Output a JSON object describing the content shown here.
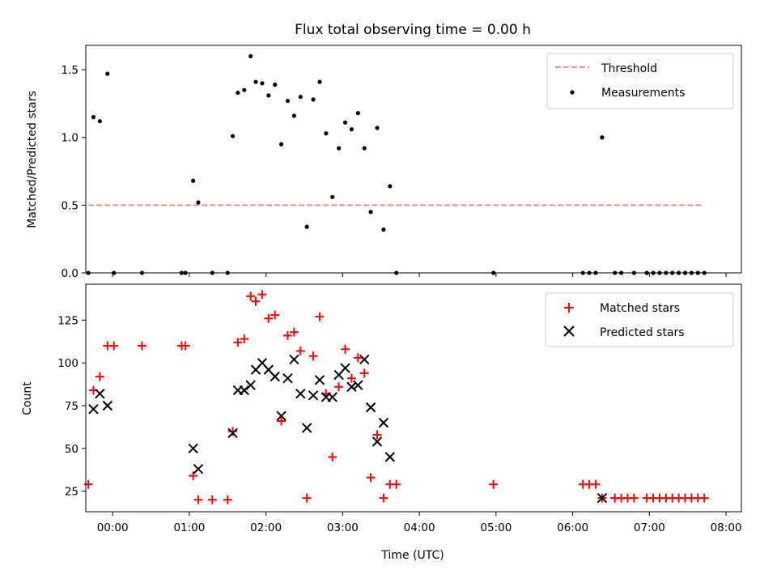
{
  "chart_data": [
    {
      "type": "scatter",
      "title": "Flux total observing time = 0.00 h",
      "xlabel": "",
      "ylabel": "Matched/Predicted stars",
      "xlim": [
        "-00:21",
        "08:12"
      ],
      "ylim": [
        0,
        1.68
      ],
      "yticks": [
        0.0,
        0.5,
        1.0,
        1.5
      ],
      "ytick_labels": [
        "0.0",
        "0.5",
        "1.0",
        "1.5"
      ],
      "legend": {
        "placement": "top-right",
        "entries": [
          "Threshold",
          "Measurements"
        ]
      },
      "series": [
        {
          "name": "Threshold",
          "style": "dashed-line",
          "color": "#ff7f7f",
          "points": [
            [
              "-00:19",
              0.5
            ],
            [
              "07:41",
              0.5
            ]
          ]
        },
        {
          "name": "Measurements",
          "style": "dot",
          "color": "#000000",
          "points": [
            [
              "-00:19",
              0.0
            ],
            [
              "-00:15",
              1.15
            ],
            [
              "-00:10",
              1.12
            ],
            [
              "-00:04",
              1.47
            ],
            [
              "00:01",
              0.0
            ],
            [
              "00:23",
              0.0
            ],
            [
              "00:54",
              0.0
            ],
            [
              "00:57",
              0.0
            ],
            [
              "01:03",
              0.68
            ],
            [
              "01:07",
              0.52
            ],
            [
              "01:18",
              0.0
            ],
            [
              "01:30",
              0.0
            ],
            [
              "01:34",
              1.01
            ],
            [
              "01:38",
              1.33
            ],
            [
              "01:43",
              1.35
            ],
            [
              "01:48",
              1.6
            ],
            [
              "01:52",
              1.41
            ],
            [
              "01:57",
              1.4
            ],
            [
              "02:02",
              1.31
            ],
            [
              "02:07",
              1.39
            ],
            [
              "02:12",
              0.95
            ],
            [
              "02:17",
              1.27
            ],
            [
              "02:22",
              1.16
            ],
            [
              "02:27",
              1.3
            ],
            [
              "02:32",
              0.34
            ],
            [
              "02:37",
              1.28
            ],
            [
              "02:42",
              1.41
            ],
            [
              "02:47",
              1.03
            ],
            [
              "02:52",
              0.56
            ],
            [
              "02:57",
              0.92
            ],
            [
              "03:02",
              1.11
            ],
            [
              "03:07",
              1.06
            ],
            [
              "03:12",
              1.18
            ],
            [
              "03:17",
              0.92
            ],
            [
              "03:22",
              0.45
            ],
            [
              "03:27",
              1.07
            ],
            [
              "03:32",
              0.32
            ],
            [
              "03:37",
              0.64
            ],
            [
              "03:42",
              0.0
            ],
            [
              "04:58",
              0.0
            ],
            [
              "06:08",
              0.0
            ],
            [
              "06:13",
              0.0
            ],
            [
              "06:18",
              0.0
            ],
            [
              "06:23",
              1.0
            ],
            [
              "06:33",
              0.0
            ],
            [
              "06:38",
              0.0
            ],
            [
              "06:48",
              0.0
            ],
            [
              "06:58",
              0.0
            ],
            [
              "07:03",
              0.0
            ],
            [
              "07:08",
              0.0
            ],
            [
              "07:13",
              0.0
            ],
            [
              "07:18",
              0.0
            ],
            [
              "07:23",
              0.0
            ],
            [
              "07:28",
              0.0
            ],
            [
              "07:33",
              0.0
            ],
            [
              "07:38",
              0.0
            ],
            [
              "07:43",
              0.0
            ]
          ]
        }
      ]
    },
    {
      "type": "scatter",
      "title": "",
      "xlabel": "Time (UTC)",
      "ylabel": "Count",
      "xlim": [
        "-00:21",
        "08:12"
      ],
      "ylim": [
        13,
        146
      ],
      "yticks": [
        25,
        50,
        75,
        100,
        125
      ],
      "ytick_labels": [
        "25",
        "50",
        "75",
        "100",
        "125"
      ],
      "xticks": [
        "00:00",
        "01:00",
        "02:00",
        "03:00",
        "04:00",
        "05:00",
        "06:00",
        "07:00",
        "08:00"
      ],
      "legend": {
        "placement": "top-right",
        "entries": [
          "Matched stars",
          "Predicted stars"
        ]
      },
      "series": [
        {
          "name": "Matched stars",
          "style": "plus",
          "color": "#ff0000",
          "points": [
            [
              "-00:19",
              29
            ],
            [
              "-00:15",
              84
            ],
            [
              "-00:10",
              92
            ],
            [
              "-00:04",
              110
            ],
            [
              "00:01",
              110
            ],
            [
              "00:23",
              110
            ],
            [
              "00:54",
              110
            ],
            [
              "00:57",
              110
            ],
            [
              "01:03",
              34
            ],
            [
              "01:07",
              20
            ],
            [
              "01:18",
              20
            ],
            [
              "01:30",
              20
            ],
            [
              "01:34",
              60
            ],
            [
              "01:38",
              112
            ],
            [
              "01:43",
              114
            ],
            [
              "01:48",
              139
            ],
            [
              "01:52",
              136
            ],
            [
              "01:57",
              140
            ],
            [
              "02:02",
              126
            ],
            [
              "02:07",
              128
            ],
            [
              "02:12",
              66
            ],
            [
              "02:17",
              116
            ],
            [
              "02:22",
              118
            ],
            [
              "02:27",
              107
            ],
            [
              "02:32",
              21
            ],
            [
              "02:37",
              104
            ],
            [
              "02:42",
              127
            ],
            [
              "02:47",
              82
            ],
            [
              "02:52",
              45
            ],
            [
              "02:57",
              86
            ],
            [
              "03:02",
              108
            ],
            [
              "03:07",
              91
            ],
            [
              "03:12",
              103
            ],
            [
              "03:17",
              94
            ],
            [
              "03:22",
              33
            ],
            [
              "03:27",
              58
            ],
            [
              "03:32",
              21
            ],
            [
              "03:37",
              29
            ],
            [
              "03:42",
              29
            ],
            [
              "04:58",
              29
            ],
            [
              "06:08",
              29
            ],
            [
              "06:13",
              29
            ],
            [
              "06:18",
              29
            ],
            [
              "06:23",
              21
            ],
            [
              "06:33",
              21
            ],
            [
              "06:38",
              21
            ],
            [
              "06:43",
              21
            ],
            [
              "06:48",
              21
            ],
            [
              "06:58",
              21
            ],
            [
              "07:03",
              21
            ],
            [
              "07:08",
              21
            ],
            [
              "07:13",
              21
            ],
            [
              "07:18",
              21
            ],
            [
              "07:23",
              21
            ],
            [
              "07:28",
              21
            ],
            [
              "07:33",
              21
            ],
            [
              "07:38",
              21
            ],
            [
              "07:43",
              21
            ]
          ]
        },
        {
          "name": "Predicted stars",
          "style": "x",
          "color": "#000000",
          "points": [
            [
              "-00:15",
              73
            ],
            [
              "-00:10",
              82
            ],
            [
              "-00:04",
              75
            ],
            [
              "01:03",
              50
            ],
            [
              "01:07",
              38
            ],
            [
              "01:34",
              59
            ],
            [
              "01:38",
              84
            ],
            [
              "01:43",
              84
            ],
            [
              "01:48",
              87
            ],
            [
              "01:52",
              96
            ],
            [
              "01:57",
              100
            ],
            [
              "02:02",
              96
            ],
            [
              "02:07",
              92
            ],
            [
              "02:12",
              69
            ],
            [
              "02:17",
              91
            ],
            [
              "02:22",
              102
            ],
            [
              "02:27",
              82
            ],
            [
              "02:32",
              62
            ],
            [
              "02:37",
              81
            ],
            [
              "02:42",
              90
            ],
            [
              "02:47",
              80
            ],
            [
              "02:52",
              80
            ],
            [
              "02:57",
              93
            ],
            [
              "03:02",
              97
            ],
            [
              "03:07",
              86
            ],
            [
              "03:12",
              87
            ],
            [
              "03:17",
              102
            ],
            [
              "03:22",
              74
            ],
            [
              "03:27",
              54
            ],
            [
              "03:32",
              65
            ],
            [
              "03:37",
              45
            ],
            [
              "06:23",
              21
            ]
          ]
        }
      ]
    }
  ]
}
